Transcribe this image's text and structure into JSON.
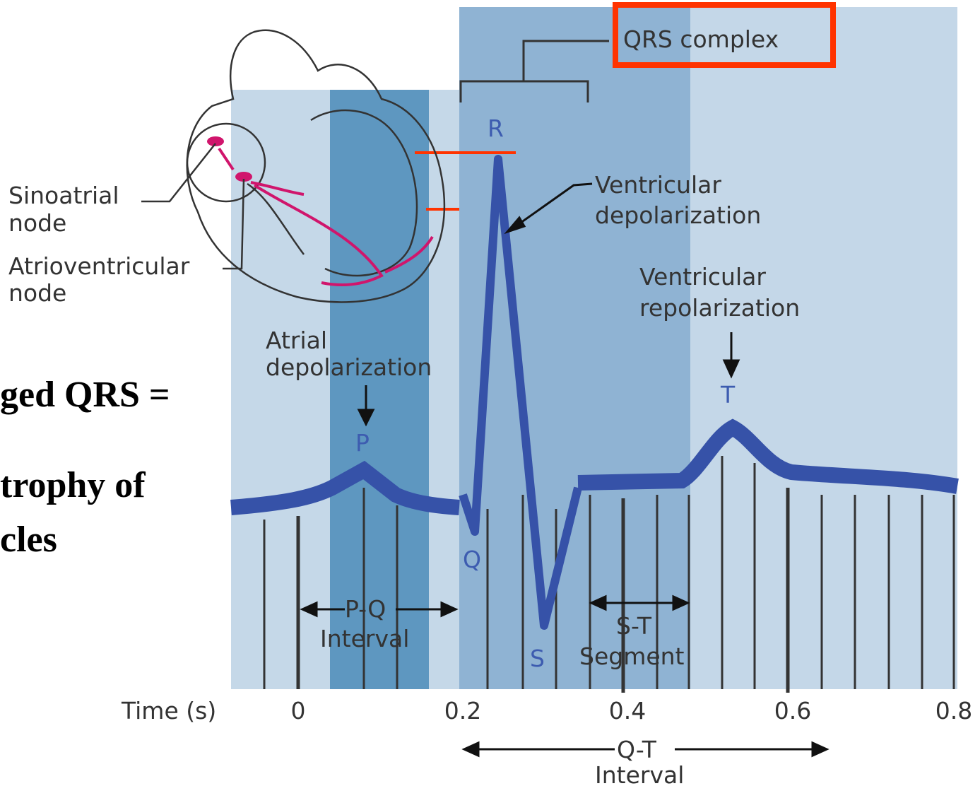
{
  "slide_text": [
    "ged QRS =",
    "trophy of",
    "cles"
  ],
  "heart": {
    "sinoatrial_node": [
      "Sinoatrial",
      "node"
    ],
    "atrioventricular_node": [
      "Atrioventricular",
      "node"
    ]
  },
  "waves": {
    "p": "P",
    "q": "Q",
    "r": "R",
    "s": "S",
    "t": "T"
  },
  "annotations": {
    "qrs_complex": "QRS complex",
    "ventricular_depolarization": [
      "Ventricular",
      "depolarization"
    ],
    "ventricular_repolarization": [
      "Ventricular",
      "repolarization"
    ],
    "atrial_depolarization": [
      "Atrial",
      "depolarization"
    ],
    "pq_interval": [
      "P-Q",
      "Interval"
    ],
    "st_segment": [
      "S-T",
      "Segment"
    ],
    "qt_interval": [
      "Q-T",
      "Interval"
    ]
  },
  "time_axis": {
    "label": "Time (s)",
    "ticks": [
      "0",
      "0.2",
      "0.4",
      "0.6",
      "0.8"
    ]
  }
}
